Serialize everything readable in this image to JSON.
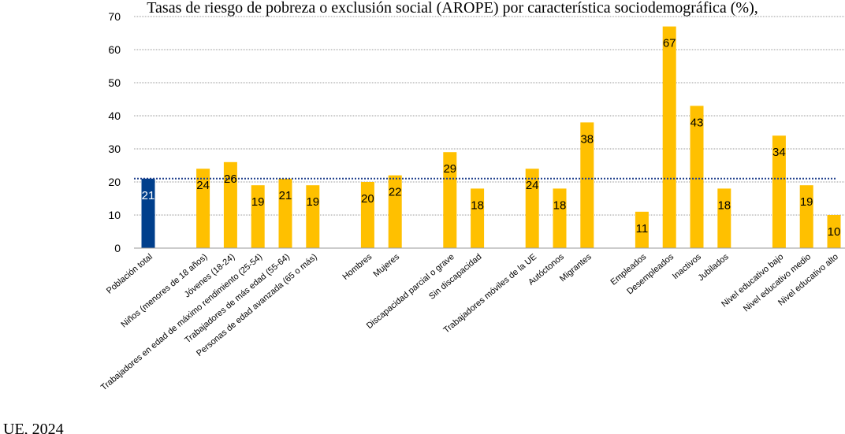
{
  "chart_data": {
    "type": "bar",
    "title": "Tasas de riesgo de pobreza o exclusión social (AROPE) por característica sociodemográfica (%),",
    "source": "UE, 2024",
    "xlabel": "",
    "ylabel": "",
    "ylim": [
      0,
      70
    ],
    "yticks": [
      0,
      10,
      20,
      30,
      40,
      50,
      60,
      70
    ],
    "grid": true,
    "reference_line_value": 21,
    "colors": {
      "highlight": "#003f8c",
      "default": "#ffc000",
      "reference": "#1f3f8c",
      "grid": "#9a9a9a"
    },
    "bars": [
      {
        "category": "Población total",
        "value": 21,
        "label": "21",
        "highlight": true
      },
      {
        "category": "Niños (menores de 18 años)",
        "value": 24,
        "label": "24"
      },
      {
        "category": "Jóvenes (18-24)",
        "value": 26,
        "label": "26"
      },
      {
        "category": "Trabajadores en edad de máximo rendimiento (25-54)",
        "value": 19,
        "label": "19"
      },
      {
        "category": "Trabajadores de más edad (55-64)",
        "value": 21,
        "label": "21"
      },
      {
        "category": "Personas de edad avanzada (65 o más)",
        "value": 19,
        "label": "19"
      },
      {
        "category": "Hombres",
        "value": 20,
        "label": "20"
      },
      {
        "category": "Mujeres",
        "value": 22,
        "label": "22"
      },
      {
        "category": "Discapacidad parcial o grave",
        "value": 29,
        "label": "29"
      },
      {
        "category": "Sin discapacidad",
        "value": 18,
        "label": "18"
      },
      {
        "category": "Trabajadores móviles de la UE",
        "value": 24,
        "label": "24"
      },
      {
        "category": "Autóctonos",
        "value": 18,
        "label": "18"
      },
      {
        "category": "Migrantes",
        "value": 38,
        "label": "38"
      },
      {
        "category": "Empleados",
        "value": 11,
        "label": "11"
      },
      {
        "category": "Desempleados",
        "value": 67,
        "label": "67"
      },
      {
        "category": "Inactivos",
        "value": 43,
        "label": "43"
      },
      {
        "category": "Jubilados",
        "value": 18,
        "label": "18"
      },
      {
        "category": "Nivel educativo bajo",
        "value": 34,
        "label": "34"
      },
      {
        "category": "Nivel educativo medio",
        "value": 19,
        "label": "19"
      },
      {
        "category": "Nivel educativo alto",
        "value": 10,
        "label": "10"
      }
    ]
  }
}
